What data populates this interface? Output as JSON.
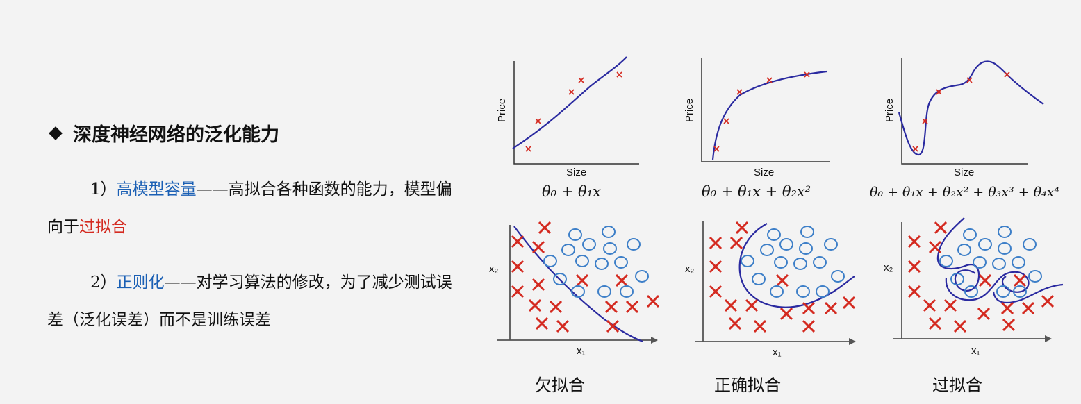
{
  "title": "深度神经网络的泛化能力",
  "point1": {
    "num": "1）",
    "term": "高模型容量",
    "text_a": "——高拟合各种函数的能力，模型偏向于",
    "text_b": "过拟合"
  },
  "point2": {
    "num": "2）",
    "term": "正则化",
    "text": "——对学习算法的修改，为了减少测试误差（泛化误差）而不是训练误差"
  },
  "regression": {
    "xlabel": "Size",
    "ylabel": "Price",
    "panels": [
      {
        "formula": "θ₀ + θ₁x"
      },
      {
        "formula": "θ₀ + θ₁x + θ₂x²"
      },
      {
        "formula": "θ₀ + θ₁x + θ₂x² + θ₃x³ + θ₄x⁴"
      }
    ]
  },
  "classification": {
    "xlabel": "x₁",
    "ylabel": "x₂",
    "captions": [
      "欠拟合",
      "正确拟合",
      "过拟合"
    ]
  },
  "colors": {
    "curve": "#2a2aa0",
    "cross": "#d42a20",
    "circle": "#3d7fc8",
    "term": "#1a5fb4",
    "highlight": "#d42a20"
  }
}
